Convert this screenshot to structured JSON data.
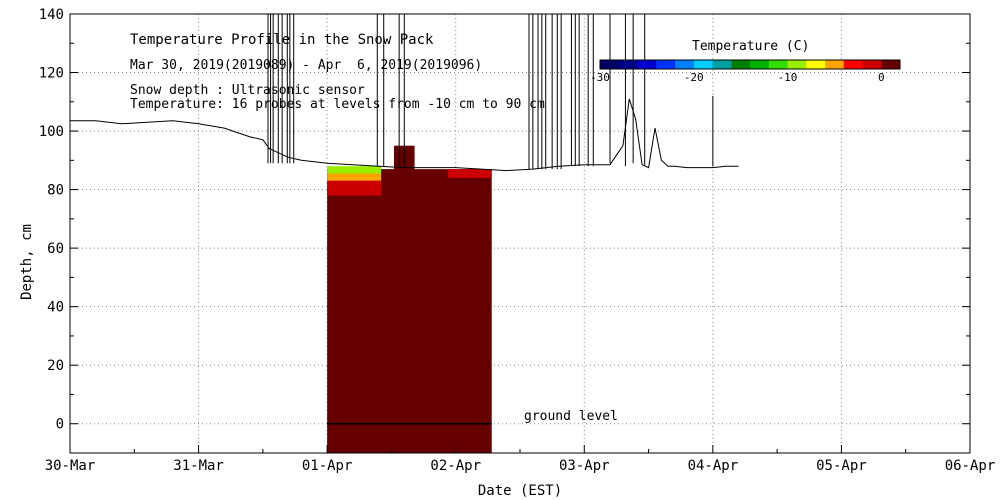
{
  "chart_data": {
    "type": "heatmap",
    "title": "Temperature Profile in the Snow Pack",
    "subtitle": "Mar 30, 2019(2019089) - Apr  6, 2019(2019096)",
    "notes": [
      "Snow depth : Ultrasonic sensor",
      "Temperature: 16 probes at levels from -10 cm to 90 cm"
    ],
    "xlabel": "Date (EST)",
    "ylabel": "Depth, cm",
    "x_tick_labels": [
      "30-Mar",
      "31-Mar",
      "01-Apr",
      "02-Apr",
      "03-Apr",
      "04-Apr",
      "05-Apr",
      "06-Apr"
    ],
    "xlim": [
      0,
      7
    ],
    "y_ticks": [
      0,
      20,
      40,
      60,
      80,
      100,
      120,
      140
    ],
    "ylim": [
      -10,
      140
    ],
    "grid": true,
    "ground_level_label": "ground level",
    "colorbar": {
      "label": "Temperature (C)",
      "tick_labels": [
        "-30",
        "-20",
        "-10",
        "0"
      ],
      "range": [
        -30,
        2
      ],
      "colors": [
        "#000066",
        "#00008b",
        "#0000cd",
        "#0033ff",
        "#0080ff",
        "#00ccff",
        "#00a0a0",
        "#008000",
        "#00b000",
        "#33dd00",
        "#99ee00",
        "#ffff00",
        "#ffa500",
        "#ff0000",
        "#cc0000",
        "#660000"
      ]
    },
    "temperature_field": {
      "x_start": 2.0,
      "x_end": 3.28,
      "y_bottom": -10,
      "y_top": 87,
      "bulk_temperature_c": 0,
      "near_surface_layers": [
        {
          "x0": 2.0,
          "x1": 2.42,
          "y0": 85.5,
          "y1": 88,
          "temperature_c": -10
        },
        {
          "x0": 2.0,
          "x1": 2.42,
          "y0": 83,
          "y1": 85.5,
          "temperature_c": -6
        },
        {
          "x0": 2.0,
          "x1": 2.42,
          "y0": 81,
          "y1": 83,
          "temperature_c": -2
        },
        {
          "x0": 2.0,
          "x1": 2.42,
          "y0": 78,
          "y1": 81,
          "temperature_c": -1
        },
        {
          "x0": 2.94,
          "x1": 3.28,
          "y0": 84,
          "y1": 87,
          "temperature_c": -1
        }
      ],
      "warm_patches": [
        {
          "x0": 2.52,
          "x1": 2.68,
          "y0": 82,
          "y1": 95,
          "temperature_c": 2
        },
        {
          "x0": 2.52,
          "x1": 2.68,
          "y0": 0,
          "y1": 9,
          "temperature_c": 2
        }
      ]
    },
    "series": [
      {
        "kind": "snow_depth",
        "x": [
          0.0,
          0.2,
          0.4,
          0.6,
          0.8,
          1.0,
          1.2,
          1.4,
          1.5,
          1.55,
          1.6,
          1.7,
          1.8,
          2.0,
          2.2,
          2.4,
          2.6,
          2.8,
          3.0,
          3.2,
          3.4,
          3.6,
          3.8,
          4.0,
          4.2,
          4.3,
          4.35,
          4.4,
          4.45,
          4.5,
          4.55,
          4.6,
          4.65,
          4.7,
          4.8,
          5.0,
          5.1,
          5.2
        ],
        "y": [
          103.5,
          103.5,
          102.5,
          103,
          103.5,
          102.5,
          101,
          98,
          97,
          94,
          93,
          91,
          90,
          89,
          88.5,
          88,
          87.5,
          87.5,
          87.5,
          87,
          86.5,
          87,
          88,
          88.5,
          88.5,
          95,
          111,
          104,
          88.5,
          87.5,
          101,
          90,
          88,
          88,
          87.5,
          87.5,
          88,
          88
        ]
      },
      {
        "kind": "sensor_spikes",
        "x": [
          1.54,
          1.56,
          1.58,
          1.62,
          1.65,
          1.69,
          1.71,
          1.74,
          2.39,
          2.44,
          2.56,
          2.6,
          3.57,
          3.6,
          3.64,
          3.67,
          3.7,
          3.75,
          3.79,
          3.82,
          3.9,
          3.93,
          3.96,
          4.03,
          4.07,
          4.2,
          4.32,
          4.38,
          4.47,
          5.0
        ],
        "y_low": [
          89,
          89,
          89,
          89,
          89,
          89,
          89,
          89,
          88,
          88,
          88,
          88,
          87,
          87,
          87,
          87,
          87,
          87,
          87,
          87,
          88,
          88,
          88,
          88,
          88,
          89,
          88,
          89,
          88,
          88
        ],
        "y_high": [
          140,
          140,
          140,
          140,
          140,
          140,
          140,
          140,
          140,
          140,
          140,
          140,
          140,
          140,
          140,
          140,
          140,
          140,
          140,
          140,
          140,
          140,
          140,
          140,
          140,
          140,
          140,
          140,
          140,
          112
        ]
      }
    ],
    "ground_line": {
      "x0": 2.0,
      "x1": 3.28,
      "y": 0
    }
  }
}
